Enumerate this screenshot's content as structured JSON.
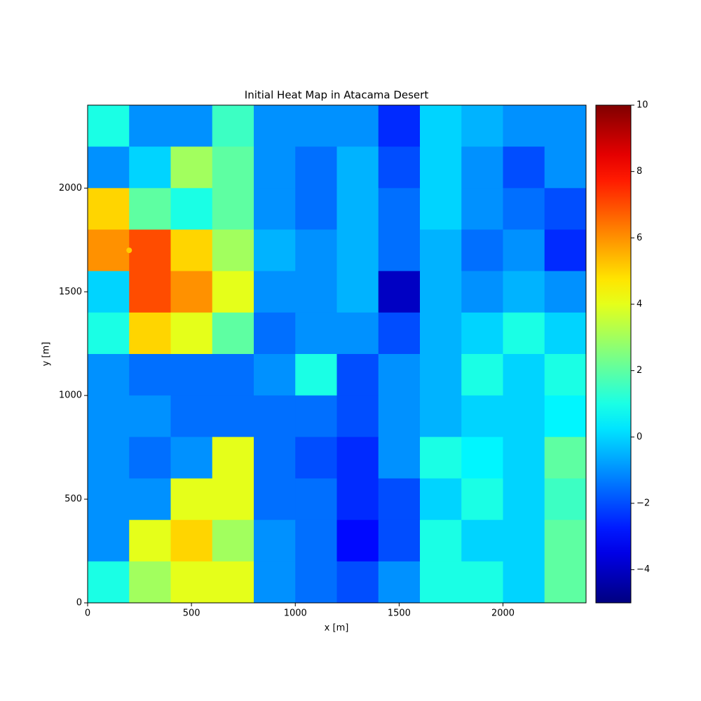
{
  "chart_data": {
    "type": "heatmap",
    "title": "Initial Heat Map in Atacama Desert",
    "xlabel": "x [m]",
    "ylabel": "y [m]",
    "xlim": [
      0,
      2400
    ],
    "ylim": [
      0,
      2400
    ],
    "xticks": [
      0,
      500,
      1000,
      1500,
      2000
    ],
    "yticks": [
      0,
      500,
      1000,
      1500,
      2000
    ],
    "colormap": "jet",
    "clim": [
      -5,
      10
    ],
    "cticks": [
      {
        "value": -4,
        "label": "−4"
      },
      {
        "value": -2,
        "label": "−2"
      },
      0,
      2,
      4,
      6,
      8,
      10
    ],
    "marker": {
      "x": 200,
      "y": 1700,
      "color": "#ffcc00"
    },
    "z": [
      [
        1,
        -1,
        -1,
        1.5,
        -1,
        -1,
        -1,
        -2.5,
        0,
        -0.5,
        -1,
        -1
      ],
      [
        -1,
        0,
        3,
        2,
        -1,
        -1.5,
        -0.5,
        -2,
        0,
        -1,
        -2,
        -1
      ],
      [
        5,
        2,
        1,
        2,
        -1,
        -1.5,
        -0.5,
        -1.5,
        0,
        -1,
        -1.5,
        -2
      ],
      [
        6,
        7,
        5,
        3,
        -0.5,
        -1,
        -0.5,
        -1.5,
        -0.5,
        -1.5,
        -1,
        -2.5
      ],
      [
        0,
        7,
        6,
        4,
        -1,
        -1,
        -0.5,
        -4,
        -0.5,
        -1,
        -0.5,
        -1
      ],
      [
        1,
        5,
        4,
        2,
        -1.5,
        -1,
        -1,
        -2,
        -0.5,
        0,
        1,
        0
      ],
      [
        -1,
        -1.5,
        -1.5,
        -1.5,
        -1,
        1,
        -2,
        -1,
        -0.5,
        1,
        0,
        1
      ],
      [
        -1,
        -1,
        -1.5,
        -1.5,
        -1.5,
        -1.5,
        -2,
        -1,
        -0.5,
        0,
        0,
        0.5
      ],
      [
        -1,
        -1.5,
        -1,
        4,
        -1.5,
        -2,
        -2.5,
        -1,
        1,
        0.5,
        0,
        2
      ],
      [
        -1,
        -1,
        4,
        4,
        -1.5,
        -1.5,
        -2.5,
        -2,
        0,
        1,
        0,
        1.5
      ],
      [
        -1,
        4,
        5,
        3,
        -1,
        -1.5,
        -3,
        -2,
        1,
        0,
        0,
        2
      ],
      [
        1,
        3,
        4,
        4,
        -1,
        -1.5,
        -2,
        -1,
        1,
        1,
        0,
        2
      ]
    ]
  }
}
